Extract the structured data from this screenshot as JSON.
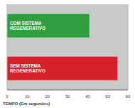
{
  "chart_data": {
    "type": "bar",
    "orientation": "horizontal",
    "categories": [
      "COM SISTEMA REGENERATIVO",
      "SEM SISTEMA REGENERATIVO"
    ],
    "values": [
      41,
      55
    ],
    "colors": [
      "#2e9e3e",
      "#d62027"
    ],
    "xlabel": "TEMPO (Em segundos)",
    "xlim": [
      0,
      60
    ],
    "xticks": [
      0,
      10,
      20,
      30,
      40,
      50,
      60
    ],
    "grid": true,
    "tick_labels": "x"
  }
}
